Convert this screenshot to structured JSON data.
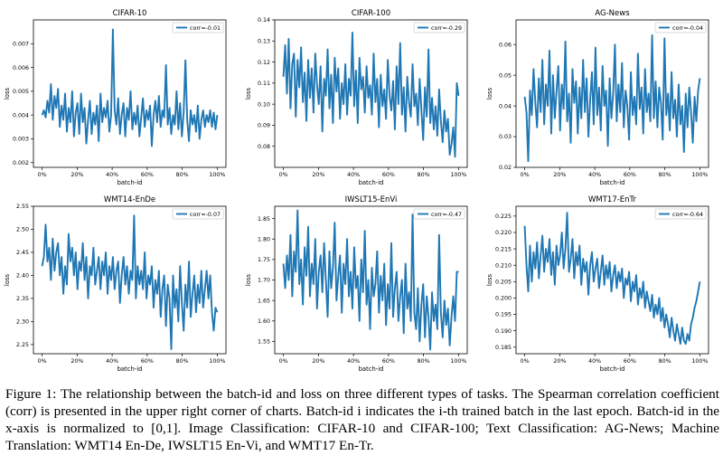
{
  "caption": "Figure 1: The relationship between the batch-id and loss on three different types of tasks. The Spearman correlation coefficient (corr) is presented in the upper right corner of charts. Batch-id i indicates the i-th trained batch in the last epoch. Batch-id in the x-axis is normalized to [0,1]. Image Classification: CIFAR-10 and CIFAR-100; Text Classification: AG-News; Machine Translation: WMT14 En-De, IWSLT15 En-Vi, and WMT17 En-Tr.",
  "colors": {
    "line": "#1f77b4",
    "axis": "#000000"
  },
  "chart_data": [
    {
      "type": "line",
      "title": "CIFAR-10",
      "xlabel": "batch-id",
      "ylabel": "loss",
      "legend": "corr=-0.01",
      "legend_position": "top-right",
      "xlim": [
        0,
        100
      ],
      "x_ticks": [
        "0%",
        "20%",
        "40%",
        "60%",
        "80%",
        "100%"
      ],
      "ylim": [
        0.0018,
        0.008
      ],
      "yticks": [
        0.002,
        0.003,
        0.004,
        0.005,
        0.006,
        0.007
      ],
      "ytick_labels": [
        "0.002",
        "0.003",
        "0.004",
        "0.005",
        "0.006",
        "0.007"
      ],
      "values": [
        0.004,
        0.0042,
        0.0039,
        0.0046,
        0.0041,
        0.0053,
        0.0038,
        0.0048,
        0.0043,
        0.0051,
        0.0035,
        0.0044,
        0.0038,
        0.0049,
        0.0033,
        0.0043,
        0.0037,
        0.005,
        0.0031,
        0.0041,
        0.0045,
        0.0032,
        0.0049,
        0.0037,
        0.0043,
        0.0028,
        0.0038,
        0.0046,
        0.0032,
        0.0041,
        0.0036,
        0.0044,
        0.0029,
        0.0049,
        0.0037,
        0.0043,
        0.0039,
        0.0046,
        0.0033,
        0.004,
        0.0076,
        0.0042,
        0.0036,
        0.0047,
        0.0032,
        0.004,
        0.0045,
        0.0031,
        0.0043,
        0.0038,
        0.005,
        0.0034,
        0.0041,
        0.0036,
        0.0044,
        0.0031,
        0.0039,
        0.0047,
        0.0035,
        0.0042,
        0.0038,
        0.0044,
        0.0027,
        0.004,
        0.0046,
        0.0037,
        0.0048,
        0.0035,
        0.0042,
        0.0039,
        0.0061,
        0.0036,
        0.0043,
        0.0032,
        0.004,
        0.0036,
        0.005,
        0.0034,
        0.0045,
        0.0031,
        0.0041,
        0.0063,
        0.0038,
        0.0029,
        0.0042,
        0.0036,
        0.004,
        0.0033,
        0.0044,
        0.003,
        0.0038,
        0.0042,
        0.0035,
        0.004,
        0.0037,
        0.0042,
        0.0035,
        0.0041,
        0.0034,
        0.004
      ]
    },
    {
      "type": "line",
      "title": "CIFAR-100",
      "xlabel": "batch-id",
      "ylabel": "loss",
      "legend": "corr=-0.29",
      "legend_position": "top-right",
      "xlim": [
        0,
        100
      ],
      "x_ticks": [
        "0%",
        "20%",
        "40%",
        "60%",
        "80%",
        "100%"
      ],
      "ylim": [
        0.07,
        0.14
      ],
      "yticks": [
        0.08,
        0.09,
        0.1,
        0.11,
        0.12,
        0.13,
        0.14
      ],
      "ytick_labels": [
        "0.08",
        "0.09",
        "0.10",
        "0.11",
        "0.12",
        "0.13",
        "0.14"
      ],
      "values": [
        0.113,
        0.128,
        0.105,
        0.131,
        0.098,
        0.119,
        0.124,
        0.094,
        0.121,
        0.108,
        0.127,
        0.101,
        0.115,
        0.092,
        0.121,
        0.103,
        0.117,
        0.096,
        0.124,
        0.109,
        0.1,
        0.118,
        0.087,
        0.112,
        0.104,
        0.126,
        0.098,
        0.114,
        0.091,
        0.122,
        0.106,
        0.117,
        0.093,
        0.11,
        0.1,
        0.119,
        0.095,
        0.112,
        0.104,
        0.134,
        0.099,
        0.116,
        0.091,
        0.122,
        0.107,
        0.113,
        0.096,
        0.118,
        0.103,
        0.109,
        0.095,
        0.124,
        0.101,
        0.112,
        0.089,
        0.114,
        0.099,
        0.107,
        0.093,
        0.121,
        0.104,
        0.097,
        0.111,
        0.088,
        0.118,
        0.1,
        0.129,
        0.095,
        0.108,
        0.087,
        0.113,
        0.101,
        0.094,
        0.119,
        0.099,
        0.105,
        0.09,
        0.112,
        0.097,
        0.083,
        0.108,
        0.094,
        0.126,
        0.091,
        0.103,
        0.088,
        0.099,
        0.085,
        0.107,
        0.092,
        0.082,
        0.097,
        0.087,
        0.093,
        0.076,
        0.081,
        0.089,
        0.075,
        0.11,
        0.104
      ]
    },
    {
      "type": "line",
      "title": "AG-News",
      "xlabel": "batch-id",
      "ylabel": "loss",
      "legend": "corr=-0.04",
      "legend_position": "top-right",
      "xlim": [
        0,
        100
      ],
      "x_ticks": [
        "0%",
        "20%",
        "40%",
        "60%",
        "80%",
        "100%"
      ],
      "ylim": [
        0.02,
        0.068
      ],
      "yticks": [
        0.02,
        0.03,
        0.04,
        0.05,
        0.06
      ],
      "ytick_labels": [
        "0.02",
        "0.03",
        "0.04",
        "0.05",
        "0.06"
      ],
      "values": [
        0.043,
        0.038,
        0.022,
        0.045,
        0.037,
        0.052,
        0.041,
        0.033,
        0.049,
        0.038,
        0.055,
        0.034,
        0.047,
        0.04,
        0.058,
        0.031,
        0.05,
        0.036,
        0.045,
        0.053,
        0.032,
        0.047,
        0.039,
        0.061,
        0.035,
        0.044,
        0.028,
        0.052,
        0.041,
        0.048,
        0.031,
        0.046,
        0.036,
        0.055,
        0.038,
        0.049,
        0.03,
        0.042,
        0.051,
        0.034,
        0.059,
        0.037,
        0.046,
        0.032,
        0.053,
        0.04,
        0.045,
        0.027,
        0.049,
        0.036,
        0.044,
        0.06,
        0.035,
        0.047,
        0.038,
        0.054,
        0.033,
        0.045,
        0.04,
        0.029,
        0.051,
        0.037,
        0.043,
        0.034,
        0.057,
        0.039,
        0.046,
        0.031,
        0.052,
        0.038,
        0.044,
        0.035,
        0.063,
        0.036,
        0.048,
        0.033,
        0.046,
        0.041,
        0.029,
        0.062,
        0.037,
        0.044,
        0.032,
        0.051,
        0.036,
        0.042,
        0.03,
        0.047,
        0.034,
        0.04,
        0.025,
        0.044,
        0.033,
        0.046,
        0.038,
        0.028,
        0.043,
        0.035,
        0.045,
        0.049
      ]
    },
    {
      "type": "line",
      "title": "WMT14-EnDe",
      "xlabel": "batch-id",
      "ylabel": "loss",
      "legend": "corr=-0.07",
      "legend_position": "top-right",
      "xlim": [
        0,
        100
      ],
      "x_ticks": [
        "0%",
        "20%",
        "40%",
        "60%",
        "80%",
        "100%"
      ],
      "ylim": [
        2.23,
        2.55
      ],
      "yticks": [
        2.25,
        2.3,
        2.35,
        2.4,
        2.45,
        2.5,
        2.55
      ],
      "ytick_labels": [
        "2.25",
        "2.30",
        "2.35",
        "2.40",
        "2.45",
        "2.50",
        "2.55"
      ],
      "values": [
        2.42,
        2.44,
        2.51,
        2.43,
        2.46,
        2.39,
        2.48,
        2.41,
        2.45,
        2.47,
        2.4,
        2.44,
        2.36,
        2.42,
        2.38,
        2.49,
        2.43,
        2.46,
        2.4,
        2.45,
        2.37,
        2.43,
        2.41,
        2.47,
        2.39,
        2.44,
        2.35,
        2.42,
        2.4,
        2.46,
        2.38,
        2.41,
        2.44,
        2.37,
        2.43,
        2.4,
        2.45,
        2.36,
        2.42,
        2.39,
        2.44,
        2.37,
        2.41,
        2.43,
        2.34,
        2.4,
        2.44,
        2.38,
        2.42,
        2.36,
        2.41,
        2.39,
        2.53,
        2.35,
        2.42,
        2.38,
        2.41,
        2.37,
        2.45,
        2.35,
        2.4,
        2.38,
        2.42,
        2.33,
        2.39,
        2.36,
        2.41,
        2.31,
        2.37,
        2.4,
        2.29,
        2.38,
        2.35,
        2.24,
        2.4,
        2.33,
        2.37,
        2.3,
        2.42,
        2.34,
        2.28,
        2.38,
        2.33,
        2.43,
        2.31,
        2.36,
        2.4,
        2.32,
        2.38,
        2.34,
        2.41,
        2.33,
        2.37,
        2.41,
        2.35,
        2.4,
        2.32,
        2.28,
        2.33,
        2.32
      ]
    },
    {
      "type": "line",
      "title": "IWSLT15-EnVi",
      "xlabel": "batch-id",
      "ylabel": "loss",
      "legend": "corr=-0.47",
      "legend_position": "top-right",
      "xlim": [
        0,
        100
      ],
      "x_ticks": [
        "0%",
        "20%",
        "40%",
        "60%",
        "80%",
        "100%"
      ],
      "ylim": [
        1.52,
        1.88
      ],
      "yticks": [
        1.55,
        1.6,
        1.65,
        1.7,
        1.75,
        1.8,
        1.85
      ],
      "ytick_labels": [
        "1.55",
        "1.60",
        "1.65",
        "1.70",
        "1.75",
        "1.80",
        "1.85"
      ],
      "values": [
        1.74,
        1.68,
        1.76,
        1.7,
        1.81,
        1.66,
        1.77,
        1.72,
        1.87,
        1.69,
        1.75,
        1.64,
        1.78,
        1.71,
        1.83,
        1.66,
        1.74,
        1.69,
        1.8,
        1.63,
        1.72,
        1.76,
        1.67,
        1.79,
        1.7,
        1.61,
        1.77,
        1.68,
        1.73,
        1.84,
        1.65,
        1.71,
        1.76,
        1.62,
        1.74,
        1.69,
        1.8,
        1.66,
        1.72,
        1.63,
        1.78,
        1.68,
        1.71,
        1.6,
        1.75,
        1.67,
        1.82,
        1.64,
        1.7,
        1.58,
        1.73,
        1.66,
        1.69,
        1.77,
        1.62,
        1.71,
        1.65,
        1.74,
        1.59,
        1.69,
        1.63,
        1.79,
        1.61,
        1.68,
        1.72,
        1.6,
        1.66,
        1.7,
        1.57,
        1.74,
        1.63,
        1.67,
        1.6,
        1.86,
        1.62,
        1.58,
        1.68,
        1.55,
        1.64,
        1.69,
        1.56,
        1.66,
        1.61,
        1.53,
        1.67,
        1.6,
        1.64,
        1.58,
        1.81,
        1.62,
        1.56,
        1.65,
        1.59,
        1.63,
        1.54,
        1.61,
        1.66,
        1.6,
        1.72,
        1.72
      ]
    },
    {
      "type": "line",
      "title": "WMT17-EnTr",
      "xlabel": "batch-id",
      "ylabel": "loss",
      "legend": "corr=-0.64",
      "legend_position": "top-right",
      "xlim": [
        0,
        100
      ],
      "x_ticks": [
        "0%",
        "20%",
        "40%",
        "60%",
        "80%",
        "100%"
      ],
      "ylim": [
        0.183,
        0.228
      ],
      "yticks": [
        0.185,
        0.19,
        0.195,
        0.2,
        0.205,
        0.21,
        0.215,
        0.22,
        0.225
      ],
      "ytick_labels": [
        "0.185",
        "0.190",
        "0.195",
        "0.200",
        "0.205",
        "0.210",
        "0.215",
        "0.220",
        "0.225"
      ],
      "values": [
        0.222,
        0.21,
        0.202,
        0.216,
        0.205,
        0.214,
        0.209,
        0.217,
        0.206,
        0.213,
        0.219,
        0.208,
        0.215,
        0.211,
        0.218,
        0.207,
        0.214,
        0.204,
        0.216,
        0.21,
        0.213,
        0.22,
        0.209,
        0.215,
        0.226,
        0.208,
        0.212,
        0.218,
        0.206,
        0.214,
        0.21,
        0.216,
        0.204,
        0.212,
        0.208,
        0.211,
        0.201,
        0.21,
        0.214,
        0.205,
        0.209,
        0.212,
        0.203,
        0.208,
        0.213,
        0.204,
        0.21,
        0.206,
        0.211,
        0.202,
        0.207,
        0.21,
        0.203,
        0.208,
        0.205,
        0.209,
        0.2,
        0.206,
        0.204,
        0.208,
        0.199,
        0.205,
        0.202,
        0.207,
        0.198,
        0.203,
        0.2,
        0.205,
        0.197,
        0.202,
        0.199,
        0.196,
        0.201,
        0.194,
        0.198,
        0.195,
        0.2,
        0.193,
        0.197,
        0.191,
        0.195,
        0.192,
        0.188,
        0.194,
        0.19,
        0.187,
        0.192,
        0.189,
        0.186,
        0.191,
        0.187,
        0.186,
        0.189,
        0.187,
        0.192,
        0.194,
        0.197,
        0.199,
        0.202,
        0.205
      ]
    }
  ]
}
